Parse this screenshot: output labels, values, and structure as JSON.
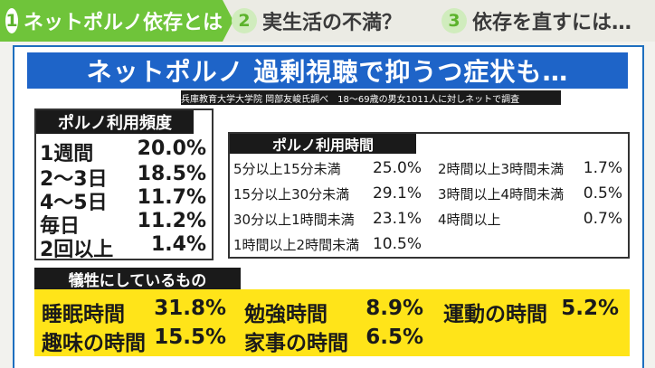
{
  "steps": [
    {
      "num": "1",
      "label": "ネットポルノ依存とは"
    },
    {
      "num": "2",
      "label": "実生活の不満？"
    },
    {
      "num": "3",
      "label": "依存を直すには…"
    }
  ],
  "title": "ネットポルノ 過剰視聴で抑うつ症状も…",
  "source": "兵庫教育大学大学院 岡部友峻氏調べ　18〜69歳の男女1011人に対しネットで調査",
  "frequency": {
    "header": "ポルノ利用頻度",
    "rows": [
      {
        "label": "1週間",
        "value": "20.0%"
      },
      {
        "label": "2〜3日",
        "value": "18.5%"
      },
      {
        "label": "4〜5日",
        "value": "11.7%"
      },
      {
        "label": "毎日",
        "value": "11.2%"
      },
      {
        "label": "2回以上",
        "value": "1.4%"
      }
    ]
  },
  "time": {
    "header": "ポルノ利用時間",
    "left": [
      {
        "label": "5分以上15分未満",
        "value": "25.0%"
      },
      {
        "label": "15分以上30分未満",
        "value": "29.1%"
      },
      {
        "label": "30分以上1時間未満",
        "value": "23.1%"
      },
      {
        "label": "1時間以上2時間未満",
        "value": "10.5%"
      }
    ],
    "right": [
      {
        "label": "2時間以上3時間未満",
        "value": "1.7%"
      },
      {
        "label": "3時間以上4時間未満",
        "value": "0.5%"
      },
      {
        "label": "4時間以上",
        "value": "0.7%"
      }
    ]
  },
  "sacrifice": {
    "header": "犠牲にしているもの",
    "items": [
      {
        "label": "睡眠時間",
        "value": "31.8%"
      },
      {
        "label": "勉強時間",
        "value": "8.9%"
      },
      {
        "label": "運動の時間",
        "value": "5.2%"
      },
      {
        "label": "趣味の時間",
        "value": "15.5%"
      },
      {
        "label": "家事の時間",
        "value": "6.5%"
      }
    ]
  },
  "colors": {
    "step_active": "#6fc43a",
    "title_bg": "#1e64c8",
    "highlight": "#ffe419"
  }
}
